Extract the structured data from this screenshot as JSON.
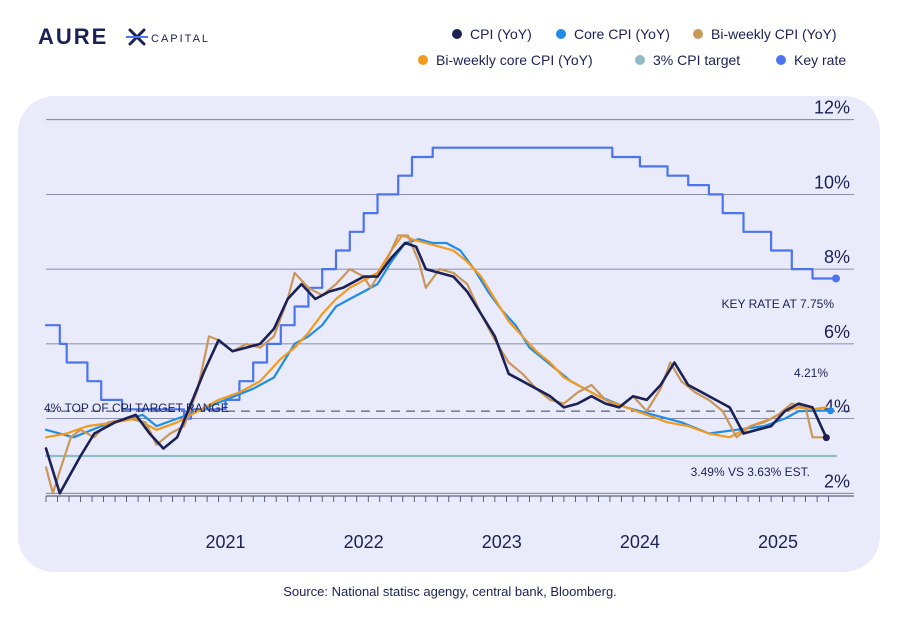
{
  "brand": {
    "name_part1": "AURE",
    "name_part2": "CAPITAL"
  },
  "legend": [
    {
      "label": "CPI (YoY)",
      "color": "#1b2157"
    },
    {
      "label": "Core CPI (YoY)",
      "color": "#1f8de8"
    },
    {
      "label": "Bi-weekly CPI (YoY)",
      "color": "#c9975a"
    },
    {
      "label": "Bi-weekly core CPI (YoY)",
      "color": "#f29a1e"
    },
    {
      "label": "3% CPI target",
      "color": "#8fbac6"
    },
    {
      "label": "Key rate",
      "color": "#4c74f0"
    }
  ],
  "source": "Source: National statisc agengy, central bank, Bloomberg.",
  "chart_data": {
    "type": "line",
    "x_range": [
      2020.2,
      2025.92
    ],
    "ylim": [
      1.5,
      12.5
    ],
    "yticks": [
      2,
      4,
      6,
      8,
      10,
      12
    ],
    "ytick_labels": [
      "2%",
      "4%",
      "6%",
      "8%",
      "10%",
      "12%"
    ],
    "xtick_labels": [
      {
        "x": 2021,
        "label": "2021"
      },
      {
        "x": 2022,
        "label": "2022"
      },
      {
        "x": 2023,
        "label": "2023"
      },
      {
        "x": 2024,
        "label": "2024"
      },
      {
        "x": 2025,
        "label": "2025"
      }
    ],
    "grid": true,
    "legend_position": "top-right",
    "annotations": {
      "upper_range": {
        "label": "4% TOP OF CPI TARGET RANGE",
        "value": 4.2
      },
      "key_rate": "KEY RATE AT 7.75%",
      "cpi_latest": "4.21%",
      "estimate": "3.49% VS 3.63% EST."
    },
    "series": [
      {
        "name": "Key rate",
        "step": true,
        "color": "#4c74f0",
        "points": [
          [
            2020.2,
            6.5
          ],
          [
            2020.3,
            6.0
          ],
          [
            2020.35,
            5.5
          ],
          [
            2020.5,
            5.0
          ],
          [
            2020.6,
            4.5
          ],
          [
            2020.75,
            4.25
          ],
          [
            2021.2,
            4.0
          ],
          [
            2021.25,
            4.25
          ],
          [
            2021.5,
            4.5
          ],
          [
            2021.6,
            5.0
          ],
          [
            2021.7,
            5.5
          ],
          [
            2021.8,
            6.0
          ],
          [
            2021.9,
            6.5
          ],
          [
            2022.0,
            7.0
          ],
          [
            2022.1,
            7.5
          ],
          [
            2022.2,
            8.0
          ],
          [
            2022.3,
            8.5
          ],
          [
            2022.4,
            9.0
          ],
          [
            2022.5,
            9.5
          ],
          [
            2022.6,
            10.0
          ],
          [
            2022.75,
            10.5
          ],
          [
            2022.85,
            11.0
          ],
          [
            2023.0,
            11.25
          ],
          [
            2024.3,
            11.0
          ],
          [
            2024.5,
            10.75
          ],
          [
            2024.7,
            10.5
          ],
          [
            2024.85,
            10.25
          ],
          [
            2025.0,
            10.0
          ],
          [
            2025.1,
            9.5
          ],
          [
            2025.25,
            9.0
          ],
          [
            2025.45,
            8.5
          ],
          [
            2025.6,
            8.0
          ],
          [
            2025.75,
            7.75
          ],
          [
            2025.92,
            7.75
          ]
        ]
      },
      {
        "name": "3% CPI target",
        "color": "#8fbac6",
        "points": [
          [
            2020.2,
            3.0
          ],
          [
            2025.92,
            3.0
          ]
        ]
      },
      {
        "name": "Core CPI (YoY)",
        "color": "#1f8de8",
        "points": [
          [
            2020.2,
            3.7
          ],
          [
            2020.4,
            3.5
          ],
          [
            2020.6,
            3.8
          ],
          [
            2020.8,
            4.0
          ],
          [
            2020.9,
            4.1
          ],
          [
            2021.0,
            3.8
          ],
          [
            2021.15,
            4.0
          ],
          [
            2021.3,
            4.2
          ],
          [
            2021.5,
            4.5
          ],
          [
            2021.7,
            4.8
          ],
          [
            2021.85,
            5.1
          ],
          [
            2022.0,
            6.0
          ],
          [
            2022.1,
            6.2
          ],
          [
            2022.2,
            6.5
          ],
          [
            2022.3,
            7.0
          ],
          [
            2022.4,
            7.2
          ],
          [
            2022.5,
            7.4
          ],
          [
            2022.6,
            7.6
          ],
          [
            2022.7,
            8.2
          ],
          [
            2022.8,
            8.7
          ],
          [
            2022.9,
            8.8
          ],
          [
            2023.0,
            8.7
          ],
          [
            2023.1,
            8.7
          ],
          [
            2023.2,
            8.5
          ],
          [
            2023.3,
            8.0
          ],
          [
            2023.4,
            7.4
          ],
          [
            2023.5,
            6.9
          ],
          [
            2023.6,
            6.5
          ],
          [
            2023.7,
            5.9
          ],
          [
            2023.8,
            5.6
          ],
          [
            2023.9,
            5.3
          ],
          [
            2024.0,
            5.0
          ],
          [
            2024.2,
            4.6
          ],
          [
            2024.4,
            4.3
          ],
          [
            2024.6,
            4.1
          ],
          [
            2024.8,
            3.9
          ],
          [
            2025.0,
            3.6
          ],
          [
            2025.2,
            3.7
          ],
          [
            2025.4,
            3.8
          ],
          [
            2025.55,
            4.0
          ],
          [
            2025.65,
            4.2
          ],
          [
            2025.8,
            4.21
          ],
          [
            2025.88,
            4.21
          ]
        ]
      },
      {
        "name": "Bi-weekly core CPI (YoY)",
        "color": "#f29a1e",
        "points": [
          [
            2020.2,
            3.5
          ],
          [
            2020.35,
            3.6
          ],
          [
            2020.5,
            3.8
          ],
          [
            2020.7,
            3.9
          ],
          [
            2020.85,
            4.0
          ],
          [
            2021.0,
            3.7
          ],
          [
            2021.15,
            3.9
          ],
          [
            2021.3,
            4.2
          ],
          [
            2021.45,
            4.5
          ],
          [
            2021.6,
            4.7
          ],
          [
            2021.75,
            5.0
          ],
          [
            2021.9,
            5.6
          ],
          [
            2022.0,
            5.9
          ],
          [
            2022.1,
            6.3
          ],
          [
            2022.2,
            6.8
          ],
          [
            2022.3,
            7.2
          ],
          [
            2022.4,
            7.5
          ],
          [
            2022.5,
            7.7
          ],
          [
            2022.6,
            7.9
          ],
          [
            2022.7,
            8.5
          ],
          [
            2022.78,
            8.9
          ],
          [
            2022.85,
            8.8
          ],
          [
            2022.95,
            8.7
          ],
          [
            2023.05,
            8.6
          ],
          [
            2023.15,
            8.5
          ],
          [
            2023.25,
            8.2
          ],
          [
            2023.35,
            7.8
          ],
          [
            2023.45,
            7.2
          ],
          [
            2023.55,
            6.6
          ],
          [
            2023.65,
            6.2
          ],
          [
            2023.75,
            5.8
          ],
          [
            2023.85,
            5.5
          ],
          [
            2023.95,
            5.1
          ],
          [
            2024.1,
            4.8
          ],
          [
            2024.25,
            4.5
          ],
          [
            2024.4,
            4.3
          ],
          [
            2024.55,
            4.1
          ],
          [
            2024.7,
            3.9
          ],
          [
            2024.85,
            3.8
          ],
          [
            2025.0,
            3.6
          ],
          [
            2025.15,
            3.5
          ],
          [
            2025.3,
            3.8
          ],
          [
            2025.45,
            4.0
          ],
          [
            2025.55,
            4.2
          ],
          [
            2025.65,
            4.3
          ],
          [
            2025.75,
            4.25
          ],
          [
            2025.85,
            4.3
          ]
        ]
      },
      {
        "name": "Bi-weekly CPI (YoY)",
        "color": "#c9975a",
        "points": [
          [
            2020.2,
            2.7
          ],
          [
            2020.25,
            2.0
          ],
          [
            2020.3,
            2.6
          ],
          [
            2020.38,
            3.5
          ],
          [
            2020.45,
            3.7
          ],
          [
            2020.55,
            3.5
          ],
          [
            2020.65,
            3.9
          ],
          [
            2020.8,
            4.0
          ],
          [
            2020.92,
            3.9
          ],
          [
            2021.0,
            3.3
          ],
          [
            2021.1,
            3.6
          ],
          [
            2021.2,
            3.8
          ],
          [
            2021.3,
            4.8
          ],
          [
            2021.38,
            6.2
          ],
          [
            2021.45,
            6.1
          ],
          [
            2021.55,
            5.8
          ],
          [
            2021.65,
            6.0
          ],
          [
            2021.75,
            5.9
          ],
          [
            2021.85,
            6.2
          ],
          [
            2021.95,
            7.2
          ],
          [
            2022.0,
            7.9
          ],
          [
            2022.1,
            7.5
          ],
          [
            2022.2,
            7.3
          ],
          [
            2022.3,
            7.6
          ],
          [
            2022.4,
            8.0
          ],
          [
            2022.5,
            7.8
          ],
          [
            2022.55,
            7.5
          ],
          [
            2022.65,
            8.1
          ],
          [
            2022.75,
            8.9
          ],
          [
            2022.82,
            8.9
          ],
          [
            2022.9,
            8.2
          ],
          [
            2022.95,
            7.5
          ],
          [
            2023.05,
            8.0
          ],
          [
            2023.15,
            7.9
          ],
          [
            2023.25,
            7.6
          ],
          [
            2023.35,
            6.8
          ],
          [
            2023.45,
            6.1
          ],
          [
            2023.55,
            5.5
          ],
          [
            2023.65,
            5.2
          ],
          [
            2023.75,
            4.8
          ],
          [
            2023.85,
            4.5
          ],
          [
            2023.95,
            4.4
          ],
          [
            2024.05,
            4.7
          ],
          [
            2024.15,
            4.9
          ],
          [
            2024.25,
            4.5
          ],
          [
            2024.35,
            4.3
          ],
          [
            2024.45,
            4.6
          ],
          [
            2024.55,
            4.2
          ],
          [
            2024.65,
            4.8
          ],
          [
            2024.72,
            5.5
          ],
          [
            2024.8,
            5.0
          ],
          [
            2024.9,
            4.7
          ],
          [
            2025.0,
            4.5
          ],
          [
            2025.1,
            4.2
          ],
          [
            2025.2,
            3.5
          ],
          [
            2025.3,
            3.8
          ],
          [
            2025.4,
            3.9
          ],
          [
            2025.5,
            4.1
          ],
          [
            2025.6,
            4.4
          ],
          [
            2025.7,
            4.3
          ],
          [
            2025.75,
            3.5
          ],
          [
            2025.85,
            3.5
          ]
        ]
      },
      {
        "name": "CPI (YoY)",
        "color": "#1b2157",
        "points": [
          [
            2020.2,
            3.2
          ],
          [
            2020.3,
            2.0
          ],
          [
            2020.45,
            3.0
          ],
          [
            2020.55,
            3.6
          ],
          [
            2020.7,
            3.9
          ],
          [
            2020.85,
            4.1
          ],
          [
            2020.95,
            3.6
          ],
          [
            2021.05,
            3.2
          ],
          [
            2021.15,
            3.5
          ],
          [
            2021.25,
            4.4
          ],
          [
            2021.35,
            5.3
          ],
          [
            2021.45,
            6.1
          ],
          [
            2021.55,
            5.8
          ],
          [
            2021.65,
            5.9
          ],
          [
            2021.75,
            6.0
          ],
          [
            2021.85,
            6.4
          ],
          [
            2021.95,
            7.2
          ],
          [
            2022.05,
            7.6
          ],
          [
            2022.15,
            7.2
          ],
          [
            2022.25,
            7.4
          ],
          [
            2022.35,
            7.5
          ],
          [
            2022.5,
            7.8
          ],
          [
            2022.6,
            7.8
          ],
          [
            2022.7,
            8.3
          ],
          [
            2022.8,
            8.7
          ],
          [
            2022.88,
            8.6
          ],
          [
            2022.95,
            8.0
          ],
          [
            2023.05,
            7.9
          ],
          [
            2023.15,
            7.8
          ],
          [
            2023.25,
            7.4
          ],
          [
            2023.35,
            6.8
          ],
          [
            2023.45,
            6.2
          ],
          [
            2023.55,
            5.2
          ],
          [
            2023.65,
            5.0
          ],
          [
            2023.75,
            4.8
          ],
          [
            2023.85,
            4.6
          ],
          [
            2023.95,
            4.3
          ],
          [
            2024.05,
            4.4
          ],
          [
            2024.15,
            4.6
          ],
          [
            2024.25,
            4.4
          ],
          [
            2024.35,
            4.3
          ],
          [
            2024.45,
            4.6
          ],
          [
            2024.55,
            4.5
          ],
          [
            2024.65,
            4.9
          ],
          [
            2024.75,
            5.5
          ],
          [
            2024.85,
            4.9
          ],
          [
            2024.95,
            4.7
          ],
          [
            2025.05,
            4.5
          ],
          [
            2025.15,
            4.3
          ],
          [
            2025.25,
            3.6
          ],
          [
            2025.35,
            3.7
          ],
          [
            2025.45,
            3.8
          ],
          [
            2025.55,
            4.2
          ],
          [
            2025.65,
            4.4
          ],
          [
            2025.75,
            4.3
          ],
          [
            2025.85,
            3.49
          ]
        ]
      }
    ]
  }
}
